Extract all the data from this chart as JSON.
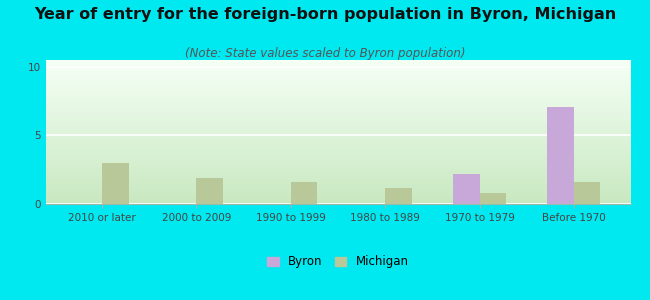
{
  "title": "Year of entry for the foreign-born population in Byron, Michigan",
  "subtitle": "(Note: State values scaled to Byron population)",
  "categories": [
    "2010 or later",
    "2000 to 2009",
    "1990 to 1999",
    "1980 to 1989",
    "1970 to 1979",
    "Before 1970"
  ],
  "byron_values": [
    0,
    0,
    0,
    0,
    2.2,
    7.1
  ],
  "michigan_values": [
    3.0,
    1.9,
    1.6,
    1.2,
    0.8,
    1.6
  ],
  "byron_color": "#c8a8d8",
  "michigan_color": "#b8c898",
  "background_outer": "#00e8f0",
  "background_inner_top": "#f5fff5",
  "background_inner_bottom": "#c8e8c0",
  "ylim": [
    0,
    10.5
  ],
  "yticks": [
    0,
    5,
    10
  ],
  "bar_width": 0.28,
  "title_fontsize": 11.5,
  "subtitle_fontsize": 8.5,
  "tick_fontsize": 7.5,
  "legend_fontsize": 8.5
}
